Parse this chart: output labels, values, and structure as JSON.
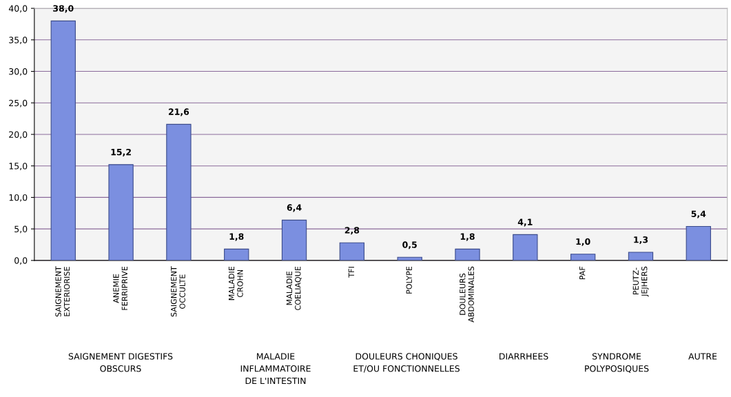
{
  "chart_data": {
    "type": "bar",
    "categories": [
      "SAIGNEMENT\nEXTERIORISE",
      "ANEMIE\nFERRIPRIVE",
      "SAIGNEMENT\nOCCULTE",
      "MALADIE\nCROHN",
      "MALADIE\nCOELIAQUE",
      "TFI",
      "POLYPE",
      "DOULEURS\nABDOMINALES",
      null,
      "PAF",
      "PEUTZ-\nJEJHERS",
      null
    ],
    "values": [
      38.0,
      15.2,
      21.6,
      1.8,
      6.4,
      2.8,
      0.5,
      1.8,
      4.1,
      1.0,
      1.3,
      5.4
    ],
    "value_labels": [
      "38,0",
      "15,2",
      "21,6",
      "1,8",
      "6,4",
      "2,8",
      "0,5",
      "1,8",
      "4,1",
      "1,0",
      "1,3",
      "5,4"
    ],
    "color": "#7b8fe0",
    "ylim": [
      0,
      40
    ],
    "yticks": [
      {
        "value": 0,
        "label": "0,0"
      },
      {
        "value": 5,
        "label": "5,0"
      },
      {
        "value": 10,
        "label": "10,0"
      },
      {
        "value": 15,
        "label": "15,0"
      },
      {
        "value": 20,
        "label": "20,0"
      },
      {
        "value": 25,
        "label": "25,0"
      },
      {
        "value": 30,
        "label": "30,0"
      },
      {
        "value": 35,
        "label": "35,0"
      },
      {
        "value": 40,
        "label": "40,0"
      }
    ],
    "grid": "y",
    "annotations": [
      "SAIGNEMENT DIGESTIFS\nOBSCURS",
      "MALADIE\nINFLAMMATOIRE\nDE L'INTESTIN",
      "DOULEURS CHONIQUES\nET/OU FONCTIONNELLES",
      "DIARRHEES",
      "SYNDROME\nPOLYPOSIQUES",
      "AUTRE"
    ]
  }
}
